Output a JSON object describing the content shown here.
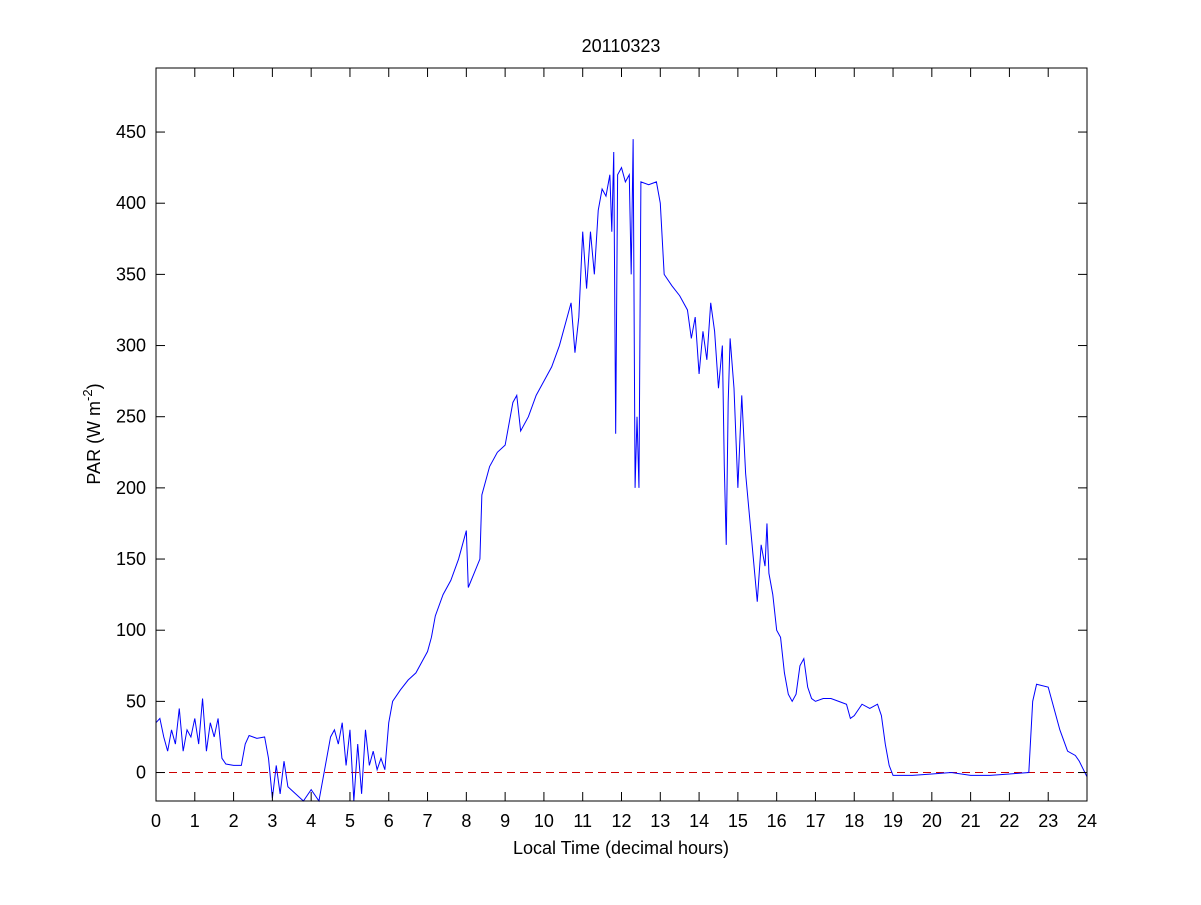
{
  "chart_data": {
    "type": "line",
    "title": "20110323",
    "xlabel": "Local Time (decimal hours)",
    "ylabel_parts": [
      "PAR (W m",
      "-2",
      ")"
    ],
    "x": [
      0,
      0.1,
      0.2,
      0.3,
      0.4,
      0.5,
      0.6,
      0.7,
      0.8,
      0.9,
      1.0,
      1.1,
      1.2,
      1.3,
      1.4,
      1.5,
      1.6,
      1.7,
      1.8,
      2.0,
      2.1,
      2.2,
      2.3,
      2.4,
      2.6,
      2.8,
      2.9,
      3.0,
      3.1,
      3.2,
      3.3,
      3.4,
      3.6,
      3.8,
      4.0,
      4.2,
      4.4,
      4.5,
      4.6,
      4.7,
      4.8,
      4.9,
      5.0,
      5.1,
      5.2,
      5.3,
      5.4,
      5.5,
      5.6,
      5.7,
      5.8,
      5.9,
      6.0,
      6.1,
      6.3,
      6.5,
      6.7,
      6.9,
      7.0,
      7.1,
      7.2,
      7.4,
      7.6,
      7.8,
      7.9,
      8.0,
      8.05,
      8.2,
      8.35,
      8.4,
      8.6,
      8.8,
      9.0,
      9.1,
      9.2,
      9.3,
      9.4,
      9.6,
      9.8,
      10.0,
      10.2,
      10.4,
      10.6,
      10.7,
      10.8,
      10.9,
      11.0,
      11.1,
      11.2,
      11.3,
      11.4,
      11.5,
      11.6,
      11.7,
      11.75,
      11.8,
      11.85,
      11.9,
      12.0,
      12.1,
      12.2,
      12.25,
      12.3,
      12.35,
      12.4,
      12.45,
      12.5,
      12.7,
      12.9,
      13.0,
      13.1,
      13.3,
      13.5,
      13.7,
      13.8,
      13.9,
      14.0,
      14.1,
      14.2,
      14.3,
      14.4,
      14.5,
      14.6,
      14.65,
      14.7,
      14.75,
      14.8,
      14.9,
      15.0,
      15.1,
      15.2,
      15.3,
      15.4,
      15.5,
      15.6,
      15.7,
      15.75,
      15.8,
      15.9,
      16.0,
      16.1,
      16.2,
      16.3,
      16.4,
      16.5,
      16.6,
      16.7,
      16.8,
      16.9,
      17.0,
      17.2,
      17.4,
      17.6,
      17.8,
      17.9,
      18.0,
      18.2,
      18.4,
      18.6,
      18.7,
      18.8,
      18.9,
      19.0,
      19.5,
      20.0,
      20.5,
      21.0,
      21.5,
      22.0,
      22.5,
      22.6,
      22.7,
      23.0,
      23.1,
      23.3,
      23.5,
      23.7,
      23.8,
      24.0
    ],
    "values": [
      35,
      38,
      25,
      15,
      30,
      20,
      45,
      15,
      30,
      25,
      38,
      20,
      52,
      15,
      35,
      25,
      38,
      10,
      6,
      5,
      5,
      5,
      20,
      26,
      24,
      25,
      10,
      -18,
      5,
      -15,
      8,
      -10,
      -15,
      -20,
      -12,
      -20,
      10,
      25,
      30,
      20,
      35,
      5,
      30,
      -20,
      20,
      -15,
      30,
      5,
      15,
      2,
      10,
      2,
      35,
      50,
      58,
      65,
      70,
      80,
      85,
      95,
      110,
      125,
      135,
      150,
      160,
      170,
      130,
      140,
      150,
      195,
      215,
      225,
      230,
      245,
      260,
      265,
      240,
      250,
      265,
      275,
      285,
      300,
      320,
      330,
      295,
      320,
      380,
      340,
      380,
      350,
      395,
      410,
      405,
      420,
      380,
      436,
      238,
      420,
      425,
      415,
      420,
      350,
      445,
      200,
      250,
      200,
      415,
      413,
      415,
      400,
      350,
      342,
      335,
      325,
      305,
      320,
      280,
      310,
      290,
      330,
      310,
      270,
      300,
      215,
      160,
      260,
      305,
      270,
      200,
      265,
      210,
      180,
      150,
      120,
      160,
      145,
      175,
      140,
      125,
      100,
      95,
      70,
      55,
      50,
      55,
      75,
      80,
      60,
      52,
      50,
      52,
      52,
      50,
      48,
      38,
      40,
      48,
      45,
      48,
      40,
      20,
      5,
      -2,
      -2,
      -1,
      0,
      -2,
      -2,
      -1,
      0,
      50,
      62,
      60,
      50,
      30,
      15,
      12,
      8,
      -3
    ],
    "color": "#0000ff",
    "xlim": [
      0,
      24
    ],
    "xticks": [
      0,
      1,
      2,
      3,
      4,
      5,
      6,
      7,
      8,
      9,
      10,
      11,
      12,
      13,
      14,
      15,
      16,
      17,
      18,
      19,
      20,
      21,
      22,
      23,
      24
    ],
    "ylim": [
      -20,
      495
    ],
    "yticks": [
      0,
      50,
      100,
      150,
      200,
      250,
      300,
      350,
      400,
      450
    ],
    "hline": {
      "value": 0,
      "color": "#cc0000",
      "style": "dashed"
    },
    "grid": false
  }
}
